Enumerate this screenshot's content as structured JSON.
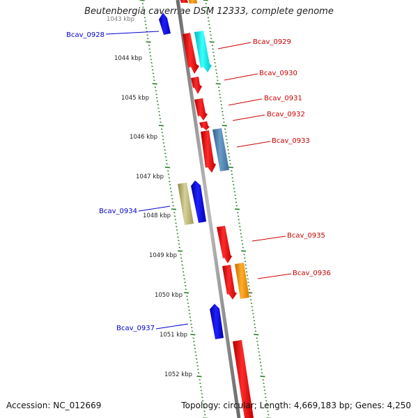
{
  "title": "Beutenbergia cavernae DSM 12333, complete genome",
  "footer": {
    "accession": "Accession: NC_012669",
    "stats": "Topology: circular; Length: 4,669,183 bp; Genes: 4,250"
  },
  "colors": {
    "backbone": "#8c8c8c",
    "ticks": "#1f7a1f",
    "forward_label": "#cc0000",
    "reverse_label": "#0000cc"
  },
  "kbp_markers": [
    {
      "label": "1043 kbp",
      "faded": true
    },
    {
      "label": "1044 kbp"
    },
    {
      "label": "1045 kbp"
    },
    {
      "label": "1046 kbp"
    },
    {
      "label": "1047 kbp"
    },
    {
      "label": "1048 kbp"
    },
    {
      "label": "1049 kbp"
    },
    {
      "label": "1050 kbp"
    },
    {
      "label": "1051 kbp"
    },
    {
      "label": "1052 kbp"
    }
  ],
  "gene_labels": [
    {
      "name": "Bcav_0928",
      "strand": "reverse"
    },
    {
      "name": "Bcav_0929",
      "strand": "forward"
    },
    {
      "name": "Bcav_0930",
      "strand": "forward"
    },
    {
      "name": "Bcav_0931",
      "strand": "forward"
    },
    {
      "name": "Bcav_0932",
      "strand": "forward"
    },
    {
      "name": "Bcav_0933",
      "strand": "forward"
    },
    {
      "name": "Bcav_0934",
      "strand": "reverse"
    },
    {
      "name": "Bcav_0935",
      "strand": "forward"
    },
    {
      "name": "Bcav_0936",
      "strand": "forward"
    },
    {
      "name": "Bcav_0937",
      "strand": "reverse"
    }
  ]
}
